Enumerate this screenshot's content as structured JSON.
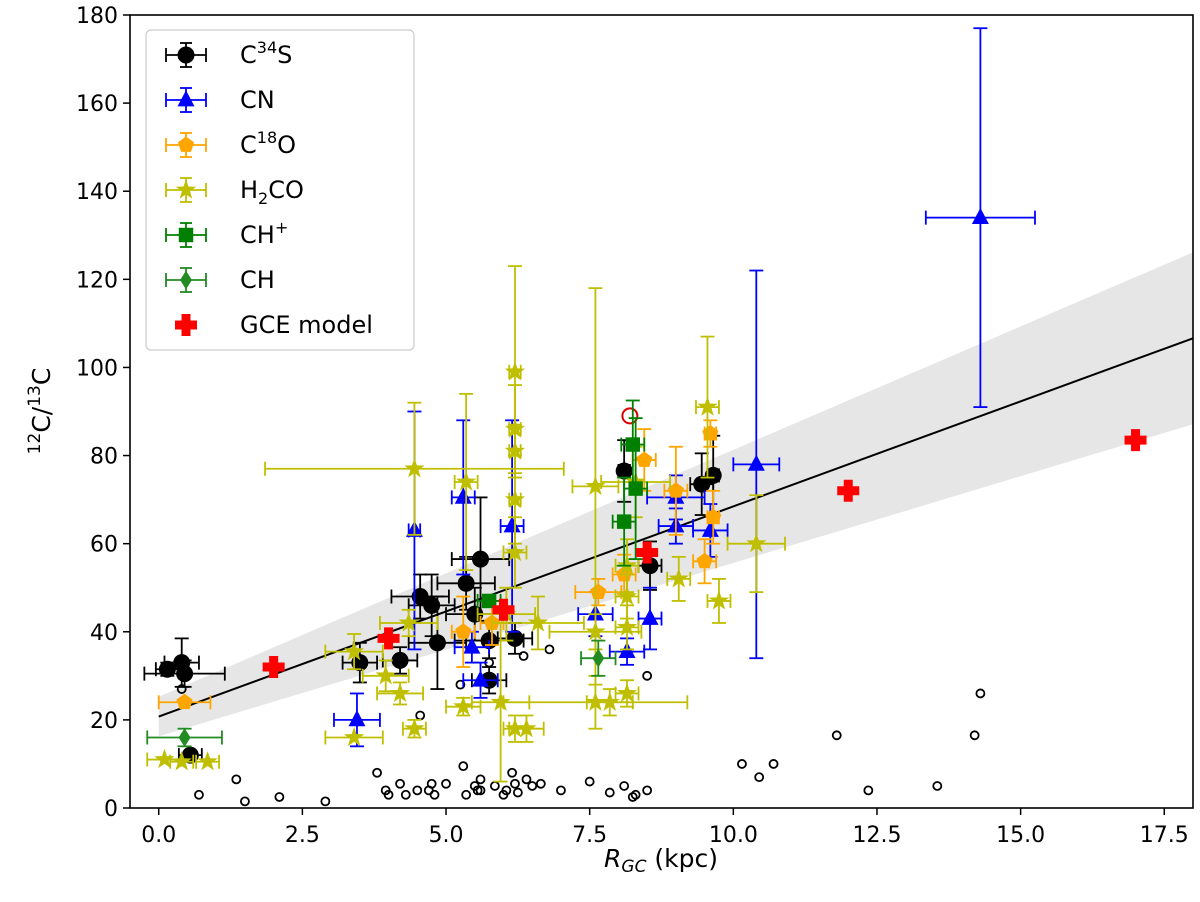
{
  "chart_data": {
    "type": "scatter",
    "title": "",
    "xlabel_italic": "R",
    "xlabel_sub": "GC",
    "xlabel_rest": " (kpc)",
    "ylabel_pre": "12",
    "ylabel_mid": "C/",
    "ylabel_sup2": "13",
    "ylabel_post": "C",
    "xlim": [
      -0.5,
      18.0
    ],
    "ylim": [
      0,
      180
    ],
    "xticks": [
      0.0,
      2.5,
      5.0,
      7.5,
      10.0,
      12.5,
      15.0,
      17.5
    ],
    "xtick_labels": [
      "0.0",
      "2.5",
      "5.0",
      "7.5",
      "10.0",
      "12.5",
      "15.0",
      "17.5"
    ],
    "yticks": [
      0,
      20,
      40,
      60,
      80,
      100,
      120,
      140,
      160,
      180
    ],
    "ytick_labels": [
      "0",
      "20",
      "40",
      "60",
      "80",
      "100",
      "120",
      "140",
      "160",
      "180"
    ],
    "grid": false,
    "legend_position": "top-left",
    "legend": [
      {
        "key": "c34s",
        "base": "C",
        "sup": "34",
        "sub": "",
        "tail": "S"
      },
      {
        "key": "cn",
        "base": "CN",
        "sup": "",
        "sub": "",
        "tail": ""
      },
      {
        "key": "c18o",
        "base": "C",
        "sup": "18",
        "sub": "",
        "tail": "O"
      },
      {
        "key": "h2co",
        "base": "H",
        "sup": "",
        "sub": "2",
        "tail": "CO"
      },
      {
        "key": "chp",
        "base": "CH",
        "sup": "+",
        "sub": "",
        "tail": ""
      },
      {
        "key": "ch",
        "base": "CH",
        "sup": "",
        "sub": "",
        "tail": ""
      },
      {
        "key": "gce",
        "base": "GCE model",
        "sup": "",
        "sub": "",
        "tail": ""
      }
    ],
    "fit": {
      "slope": 4.77,
      "intercept": 20.76,
      "x_range": [
        0.0,
        18.0
      ],
      "band_start_halfwidth": 4.5,
      "band_end_halfwidth": 19.5
    },
    "series": [
      {
        "key": "c34s",
        "name": "C34S",
        "color": "#000000",
        "marker": "circle",
        "points": [
          [
            0.15,
            31.5,
            0.2,
            1.5
          ],
          [
            0.4,
            33,
            0.3,
            5.5
          ],
          [
            0.45,
            30.5,
            0.7,
            3
          ],
          [
            0.55,
            12,
            0.2,
            0
          ],
          [
            3.5,
            33,
            0.3,
            4.5
          ],
          [
            4.2,
            33.5,
            0.3,
            3
          ],
          [
            4.55,
            48,
            0.5,
            5
          ],
          [
            4.75,
            46,
            0.4,
            7
          ],
          [
            4.85,
            37.5,
            0.5,
            10.5
          ],
          [
            5.35,
            51,
            0.5,
            6
          ],
          [
            5.5,
            44,
            0.5,
            6
          ],
          [
            5.6,
            56.5,
            0.5,
            14
          ],
          [
            5.75,
            38,
            0.6,
            4
          ],
          [
            5.75,
            29,
            0.3,
            3
          ],
          [
            6.2,
            38.5,
            0.3,
            3.5
          ],
          [
            8.1,
            76.5,
            0.1,
            7
          ],
          [
            8.55,
            55,
            0.2,
            5.5
          ],
          [
            9.45,
            73.5,
            0.2,
            7
          ],
          [
            9.65,
            75.5,
            0.1,
            9
          ]
        ]
      },
      {
        "key": "cn",
        "name": "CN",
        "color": "#0000ff",
        "marker": "triangle",
        "points": [
          [
            3.45,
            20,
            0.4,
            6
          ],
          [
            4.45,
            63,
            0.1,
            27
          ],
          [
            5.3,
            70.5,
            0.2,
            17.5
          ],
          [
            5.45,
            36.5,
            0.3,
            3.5
          ],
          [
            5.6,
            29,
            0.3,
            4
          ],
          [
            6.15,
            64,
            0.2,
            24
          ],
          [
            7.6,
            44,
            0.3,
            5
          ],
          [
            8.15,
            35.5,
            0.3,
            3
          ],
          [
            8.55,
            43,
            0.2,
            7
          ],
          [
            9.0,
            70.5,
            0.5,
            5
          ],
          [
            9.0,
            64,
            0.3,
            4
          ],
          [
            9.6,
            63,
            0.3,
            6
          ],
          [
            10.4,
            78,
            0.4,
            44
          ],
          [
            14.3,
            134,
            0.95,
            43
          ]
        ]
      },
      {
        "key": "c18o",
        "name": "C18O",
        "color": "#ffa500",
        "marker": "pentagon",
        "points": [
          [
            0.45,
            24,
            0.45,
            0
          ],
          [
            5.3,
            40,
            0.2,
            8
          ],
          [
            5.8,
            42,
            0.2,
            5
          ],
          [
            7.65,
            49,
            0.4,
            3
          ],
          [
            8.1,
            53,
            0.2,
            4.5
          ],
          [
            8.45,
            79,
            0.2,
            7
          ],
          [
            9.0,
            72,
            0.2,
            10
          ],
          [
            9.5,
            56,
            0.2,
            5
          ],
          [
            9.6,
            85,
            0.1,
            3
          ],
          [
            9.65,
            66,
            0.1,
            6
          ]
        ]
      },
      {
        "key": "h2co",
        "name": "H2CO",
        "color": "#bfbf00",
        "marker": "star",
        "points": [
          [
            0.1,
            11,
            0.3,
            0
          ],
          [
            0.4,
            10.5,
            0.2,
            0
          ],
          [
            0.85,
            10.5,
            0.2,
            0
          ],
          [
            3.4,
            16,
            0.5,
            0
          ],
          [
            3.4,
            35.5,
            0.5,
            4
          ],
          [
            3.95,
            30,
            0.4,
            3.5
          ],
          [
            4.2,
            26,
            0.4,
            2.5
          ],
          [
            4.35,
            42,
            0.5,
            3
          ],
          [
            4.45,
            77,
            2.6,
            15
          ],
          [
            4.45,
            18,
            0.2,
            2
          ],
          [
            5.3,
            23,
            0.3,
            2
          ],
          [
            5.35,
            74,
            0.2,
            20
          ],
          [
            5.95,
            24,
            0.5,
            18
          ],
          [
            6.05,
            44,
            0.5,
            6
          ],
          [
            6.2,
            99,
            0.1,
            24
          ],
          [
            6.2,
            86,
            0.1,
            10
          ],
          [
            6.2,
            81,
            0.1,
            6
          ],
          [
            6.2,
            70,
            0.1,
            10
          ],
          [
            6.2,
            58,
            0.2,
            8
          ],
          [
            6.2,
            18,
            0.2,
            3
          ],
          [
            6.4,
            18,
            0.3,
            3
          ],
          [
            6.6,
            42,
            0.8,
            6
          ],
          [
            7.6,
            73,
            0.4,
            45
          ],
          [
            7.6,
            40,
            0.8,
            4
          ],
          [
            7.6,
            24,
            1.6,
            6
          ],
          [
            7.85,
            24,
            0.4,
            3
          ],
          [
            8.15,
            55,
            0.2,
            6
          ],
          [
            8.15,
            48,
            0.2,
            5
          ],
          [
            8.15,
            41,
            0.2,
            5
          ],
          [
            8.15,
            26,
            0.2,
            3
          ],
          [
            8.3,
            74,
            0.6,
            8
          ],
          [
            9.05,
            52,
            0.2,
            5
          ],
          [
            9.55,
            91,
            0.2,
            16
          ],
          [
            9.75,
            47,
            0.2,
            5
          ],
          [
            10.4,
            60,
            0.5,
            11
          ]
        ]
      },
      {
        "key": "chp",
        "name": "CH+",
        "color": "#008000",
        "marker": "square",
        "points": [
          [
            8.1,
            65,
            0.2,
            10
          ],
          [
            8.25,
            82.5,
            0.2,
            10
          ],
          [
            8.3,
            72.5,
            0.2,
            16
          ],
          [
            5.75,
            47,
            0.2,
            0
          ]
        ]
      },
      {
        "key": "ch",
        "name": "CH",
        "color": "#228b22",
        "marker": "diamond",
        "points": [
          [
            0.45,
            16,
            0.65,
            2
          ],
          [
            7.65,
            34,
            0.3,
            4
          ]
        ]
      },
      {
        "key": "gce",
        "name": "GCE model",
        "color": "#ff0000",
        "marker": "plus",
        "points": [
          [
            2.0,
            32,
            0,
            0
          ],
          [
            4.0,
            38.5,
            0,
            0
          ],
          [
            6.0,
            45,
            0,
            0
          ],
          [
            8.5,
            58,
            0,
            0
          ],
          [
            12.0,
            72,
            0,
            0
          ],
          [
            17.0,
            83.5,
            0,
            0
          ]
        ]
      }
    ],
    "open_circle_special": {
      "x": 8.2,
      "y": 89,
      "color": "#dd0000"
    },
    "open_circles": [
      [
        0.4,
        27
      ],
      [
        0.7,
        3
      ],
      [
        1.35,
        6.5
      ],
      [
        1.5,
        1.5
      ],
      [
        2.1,
        2.5
      ],
      [
        2.9,
        1.5
      ],
      [
        3.8,
        8
      ],
      [
        3.95,
        4
      ],
      [
        4.0,
        3
      ],
      [
        4.2,
        5.5
      ],
      [
        4.3,
        3
      ],
      [
        4.5,
        4
      ],
      [
        4.55,
        21
      ],
      [
        4.7,
        4
      ],
      [
        4.75,
        5.5
      ],
      [
        4.8,
        3
      ],
      [
        5.0,
        5.5
      ],
      [
        5.25,
        28
      ],
      [
        5.3,
        9.5
      ],
      [
        5.35,
        3
      ],
      [
        5.5,
        5
      ],
      [
        5.55,
        4
      ],
      [
        5.6,
        4
      ],
      [
        5.6,
        6.5
      ],
      [
        5.75,
        33
      ],
      [
        5.85,
        5
      ],
      [
        6.0,
        3
      ],
      [
        6.05,
        4
      ],
      [
        6.15,
        8
      ],
      [
        6.2,
        5.5
      ],
      [
        6.25,
        3.5
      ],
      [
        6.35,
        34.5
      ],
      [
        6.4,
        6.5
      ],
      [
        6.5,
        5
      ],
      [
        6.65,
        5.5
      ],
      [
        6.8,
        36
      ],
      [
        7.0,
        4
      ],
      [
        7.5,
        6
      ],
      [
        7.85,
        3.5
      ],
      [
        8.1,
        5
      ],
      [
        8.25,
        2.5
      ],
      [
        8.3,
        3
      ],
      [
        8.5,
        4
      ],
      [
        8.5,
        30
      ],
      [
        10.15,
        10
      ],
      [
        10.45,
        7
      ],
      [
        10.7,
        10
      ],
      [
        11.8,
        16.5
      ],
      [
        12.35,
        4
      ],
      [
        13.55,
        5
      ],
      [
        14.2,
        16.5
      ],
      [
        14.3,
        26
      ]
    ]
  }
}
